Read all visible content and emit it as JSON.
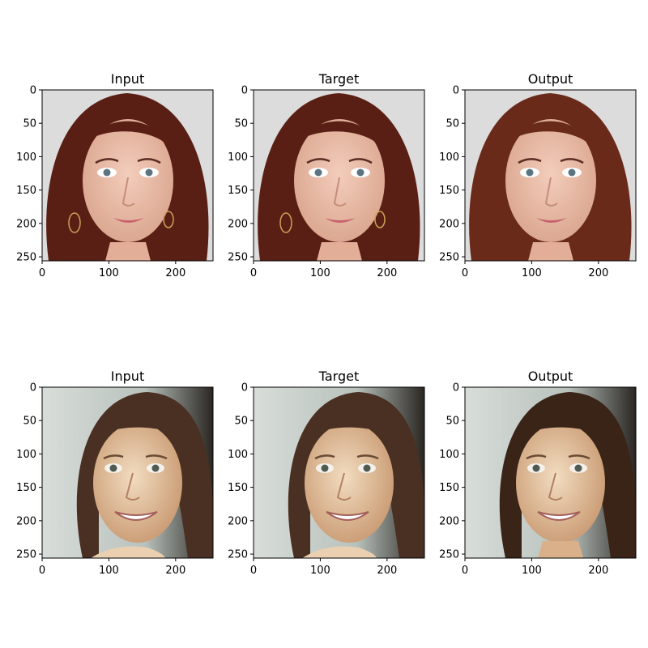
{
  "figure": {
    "rows": [
      {
        "panels": [
          {
            "title": "Input",
            "image": "face-woman-auburn-hair-input"
          },
          {
            "title": "Target",
            "image": "face-woman-auburn-hair-target"
          },
          {
            "title": "Output",
            "image": "face-woman-auburn-hair-output"
          }
        ]
      },
      {
        "panels": [
          {
            "title": "Input",
            "image": "face-girl-smiling-input"
          },
          {
            "title": "Target",
            "image": "face-girl-smiling-target"
          },
          {
            "title": "Output",
            "image": "face-girl-smiling-output"
          }
        ]
      }
    ],
    "axes": {
      "x_ticks": [
        "0",
        "100",
        "200"
      ],
      "y_ticks": [
        "0",
        "50",
        "100",
        "150",
        "200",
        "250"
      ],
      "x_tick_values": [
        0,
        100,
        200
      ],
      "y_tick_values": [
        0,
        50,
        100,
        150,
        200,
        250
      ],
      "extent": [
        0,
        256
      ]
    },
    "colors": {
      "axis": "#000000",
      "background": "#ffffff",
      "hair_auburn": "#5a1f14",
      "skin_light": "#e8b8a3",
      "backdrop_light": "#dcdcdc",
      "hair_brown": "#4a3022",
      "skin_warm": "#e3c09a",
      "backdrop_pale": "#cfd6d2"
    }
  }
}
